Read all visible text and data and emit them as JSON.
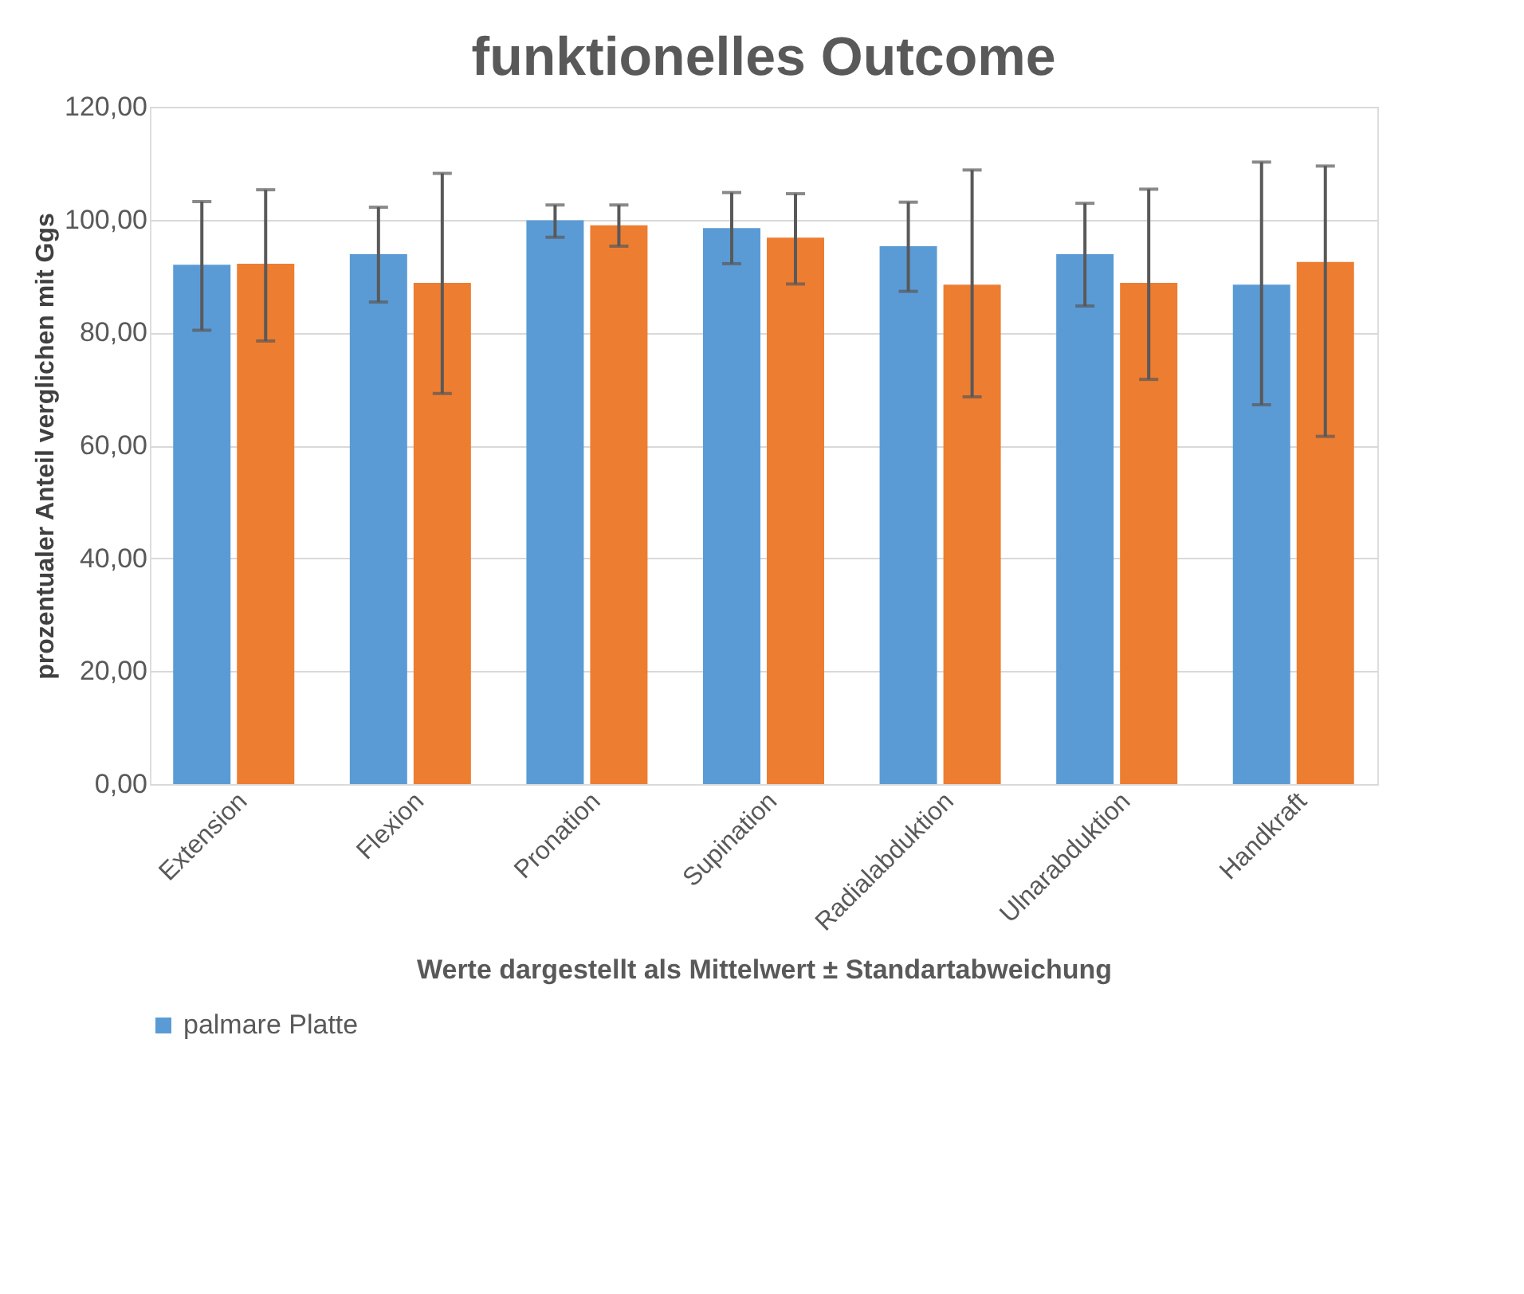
{
  "chart_data": {
    "type": "bar",
    "title": "funktionelles Outcome",
    "xlabel": "Werte dargestellt als Mittelwert ± Standartabweichung",
    "ylabel": "prozentualer Anteil verglichen mit Ggs",
    "categories": [
      "Extension",
      "Flexion",
      "Pronation",
      "Supination",
      "Radialabduktion",
      "Ulnarabduktion",
      "Handkraft"
    ],
    "series": [
      {
        "name": "palmare Platte",
        "color": "#5b9bd5",
        "values": [
          92.0,
          93.9,
          99.9,
          98.5,
          95.3,
          93.9,
          88.5
        ],
        "errors": [
          [
            80.4,
            103.2
          ],
          [
            85.4,
            102.2
          ],
          [
            96.9,
            102.6
          ],
          [
            92.2,
            104.8
          ],
          [
            87.3,
            103.1
          ],
          [
            84.7,
            102.9
          ],
          [
            67.2,
            110.2
          ]
        ]
      },
      {
        "color": "#ed7d31",
        "values": [
          92.2,
          88.8,
          99.0,
          96.8,
          88.5,
          88.8,
          92.5
        ],
        "errors": [
          [
            78.5,
            105.3
          ],
          [
            69.2,
            108.2
          ],
          [
            95.3,
            102.6
          ],
          [
            88.6,
            104.6
          ],
          [
            68.6,
            108.8
          ],
          [
            71.7,
            105.4
          ],
          [
            61.6,
            109.5
          ]
        ]
      }
    ],
    "ylim": [
      0,
      120
    ],
    "yticks": [
      {
        "value": 0,
        "label": "0,00"
      },
      {
        "value": 20,
        "label": "20,00"
      },
      {
        "value": 40,
        "label": "40,00"
      },
      {
        "value": 60,
        "label": "60,00"
      },
      {
        "value": 80,
        "label": "80,00"
      },
      {
        "value": 100,
        "label": "100,00"
      },
      {
        "value": 120,
        "label": "120,00"
      }
    ],
    "grid": "y",
    "legend": "bottom"
  }
}
